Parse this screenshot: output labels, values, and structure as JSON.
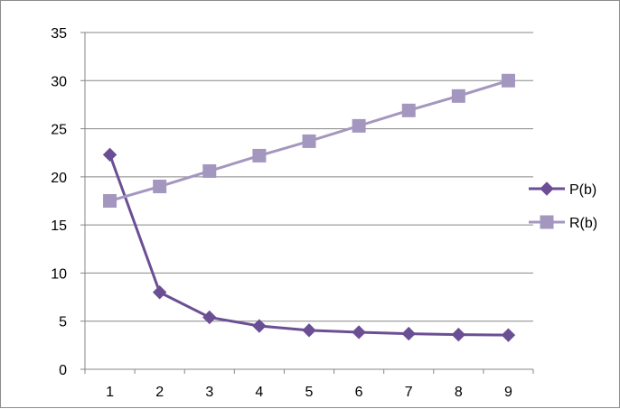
{
  "chart_data": {
    "type": "line",
    "title": "",
    "xlabel": "",
    "ylabel": "",
    "categories": [
      "1",
      "2",
      "3",
      "4",
      "5",
      "6",
      "7",
      "8",
      "9"
    ],
    "y_ticks": [
      "0",
      "5",
      "10",
      "15",
      "20",
      "25",
      "30",
      "35"
    ],
    "ylim": [
      0,
      35
    ],
    "grid": "horizontal",
    "legend_position": "right",
    "series": [
      {
        "name": "P(b)",
        "values": [
          22.3,
          8.0,
          5.4,
          4.5,
          4.05,
          3.85,
          3.7,
          3.6,
          3.55
        ],
        "color": "#6b4f94",
        "marker": "diamond"
      },
      {
        "name": "R(b)",
        "values": [
          17.5,
          19.0,
          20.6,
          22.2,
          23.7,
          25.3,
          26.9,
          28.4,
          30.0
        ],
        "color": "#a497bf",
        "marker": "square"
      }
    ]
  }
}
